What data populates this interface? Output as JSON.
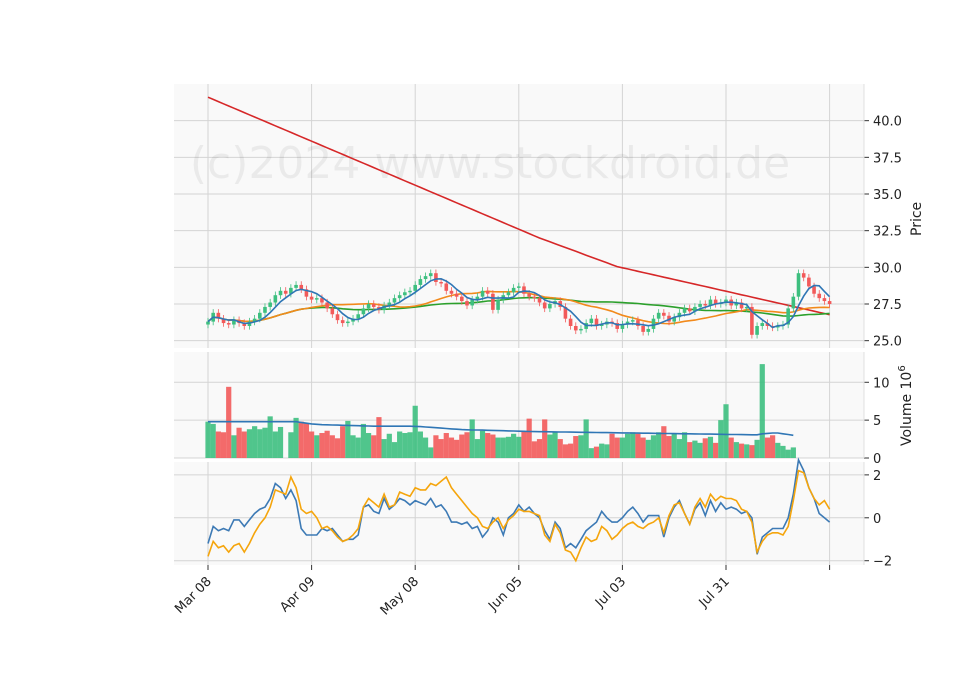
{
  "watermark": "(c)2024 www.stockdroid.de",
  "colors": {
    "up": "#3dbf7f",
    "down": "#f25a5a",
    "ma_short": "#2f76b5",
    "ma_mid": "#f28a1c",
    "ma_long": "#2ca02c",
    "ma_200": "#d62728",
    "osc_a": "#3d7ab5",
    "osc_b": "#f5a50c",
    "panel_bg": "#f9f9f9",
    "grid": "#d4d4d4"
  },
  "chart_data": [
    {
      "type": "candlestick",
      "ylabel": "Price",
      "ylim": [
        24.5,
        42.5
      ],
      "yticks": [
        25.0,
        27.5,
        30.0,
        32.5,
        35.0,
        37.5,
        40.0
      ],
      "x_tick_labels": [
        {
          "index": 0,
          "label": "Mar 08"
        },
        {
          "index": 20,
          "label": "Apr 09"
        },
        {
          "index": 40,
          "label": "May 08"
        },
        {
          "index": 60,
          "label": "Jun 05"
        },
        {
          "index": 80,
          "label": "Jul 03"
        },
        {
          "index": 100,
          "label": "Jul 31"
        },
        {
          "index": 120,
          "label": ""
        }
      ],
      "closes": [
        26.3,
        26.9,
        26.5,
        26.2,
        26.1,
        26.4,
        26.2,
        26.0,
        26.3,
        26.5,
        26.9,
        27.3,
        27.6,
        28.1,
        28.4,
        28.2,
        28.6,
        28.8,
        28.5,
        28.0,
        27.8,
        27.9,
        27.6,
        27.2,
        26.8,
        26.4,
        26.2,
        26.3,
        26.5,
        26.8,
        27.2,
        27.5,
        27.3,
        27.1,
        27.4,
        27.6,
        27.9,
        28.1,
        28.3,
        28.4,
        28.8,
        29.2,
        29.4,
        29.6,
        29.0,
        28.9,
        28.4,
        28.2,
        28.0,
        27.7,
        27.4,
        27.8,
        28.0,
        28.4,
        28.2,
        27.1,
        27.8,
        28.1,
        28.3,
        28.6,
        28.7,
        28.2,
        28.0,
        27.9,
        27.6,
        27.2,
        27.5,
        27.7,
        27.3,
        26.5,
        26.0,
        25.7,
        25.8,
        26.2,
        26.5,
        26.0,
        26.1,
        26.3,
        26.2,
        25.8,
        26.1,
        26.3,
        26.4,
        26.0,
        25.6,
        25.8,
        26.5,
        26.9,
        26.7,
        26.3,
        26.6,
        26.9,
        27.2,
        27.0,
        27.3,
        27.5,
        27.4,
        27.8,
        27.5,
        27.6,
        27.8,
        27.4,
        27.6,
        27.2,
        27.3,
        25.4,
        26.0,
        26.2,
        26.0,
        25.9,
        26.0,
        26.1,
        27.2,
        28.0,
        29.6,
        29.3,
        28.7,
        28.2,
        27.9,
        27.7,
        27.5
      ],
      "ma_200": [
        41.6,
        41.45,
        41.3,
        41.15,
        41.0,
        40.85,
        40.7,
        40.55,
        40.4,
        40.25,
        40.1,
        39.95,
        39.8,
        39.65,
        39.5,
        39.35,
        39.2,
        39.05,
        38.9,
        38.75,
        38.6,
        38.45,
        38.3,
        38.15,
        38.0,
        37.85,
        37.7,
        37.55,
        37.4,
        37.25,
        37.1,
        36.95,
        36.8,
        36.65,
        36.5,
        36.35,
        36.2,
        36.05,
        35.9,
        35.75,
        35.6,
        35.45,
        35.3,
        35.15,
        35.0,
        34.85,
        34.7,
        34.55,
        34.4,
        34.25,
        34.1,
        33.95,
        33.8,
        33.65,
        33.5,
        33.35,
        33.2,
        33.05,
        32.9,
        32.75,
        32.6,
        32.45,
        32.3,
        32.15,
        32.0,
        31.87,
        31.74,
        31.61,
        31.48,
        31.35,
        31.22,
        31.09,
        30.96,
        30.83,
        30.7,
        30.57,
        30.44,
        30.31,
        30.18,
        30.05,
        29.97,
        29.89,
        29.81,
        29.73,
        29.65,
        29.57,
        29.49,
        29.41,
        29.33,
        29.25,
        29.17,
        29.09,
        29.01,
        28.93,
        28.85,
        28.77,
        28.69,
        28.61,
        28.53,
        28.45,
        28.37,
        28.29,
        28.21,
        28.13,
        28.05,
        27.97,
        27.89,
        27.81,
        27.73,
        27.65,
        27.57,
        27.49,
        27.41,
        27.33,
        27.25,
        27.17,
        27.09,
        27.01,
        26.93,
        26.85,
        26.77
      ]
    },
    {
      "type": "bar",
      "ylabel": "Volume  10",
      "ylabel_exponent": "6",
      "ylim": [
        0,
        14
      ],
      "yticks": [
        0,
        5,
        10
      ],
      "values": [
        4.8,
        4.5,
        3.5,
        3.4,
        9.4,
        3.0,
        4.0,
        3.5,
        3.8,
        4.2,
        3.8,
        4.0,
        5.5,
        3.5,
        4.1,
        0.0,
        3.4,
        5.3,
        4.8,
        4.6,
        3.5,
        3.0,
        3.3,
        3.6,
        3.0,
        2.6,
        4.2,
        4.9,
        3.0,
        2.7,
        4.5,
        3.3,
        3.0,
        5.4,
        2.5,
        3.2,
        2.1,
        3.5,
        3.3,
        3.4,
        6.9,
        3.5,
        2.7,
        1.4,
        3.0,
        2.5,
        3.3,
        2.7,
        2.4,
        3.1,
        3.4,
        5.1,
        2.5,
        3.6,
        3.3,
        3.1,
        2.7,
        2.7,
        2.8,
        3.2,
        2.8,
        3.5,
        5.2,
        2.2,
        2.5,
        5.1,
        3.1,
        3.4,
        2.5,
        1.8,
        1.9,
        2.9,
        3.0,
        5.1,
        1.3,
        1.5,
        1.9,
        1.8,
        3.2,
        2.7,
        2.7,
        3.2,
        3.4,
        3.2,
        2.7,
        2.4,
        3.0,
        3.4,
        4.2,
        2.9,
        3.2,
        2.5,
        3.4,
        2.1,
        2.3,
        2.0,
        2.6,
        2.8,
        2.0,
        5.0,
        7.1,
        2.7,
        2.1,
        1.9,
        1.8,
        1.7,
        2.4,
        12.4,
        2.7,
        3.0,
        2.0,
        1.6,
        1.1,
        1.4
      ],
      "avg": [
        4.8,
        4.8,
        4.8,
        4.8,
        4.8,
        4.8,
        4.8,
        4.8,
        4.8,
        4.8,
        4.8,
        4.8,
        4.8,
        4.8,
        4.8,
        4.8,
        4.8,
        4.8,
        4.7,
        4.6,
        4.5,
        4.45,
        4.4,
        4.38,
        4.36,
        4.34,
        4.32,
        4.3,
        4.28,
        4.26,
        4.24,
        4.22,
        4.2,
        4.2,
        4.2,
        4.2,
        4.2,
        4.2,
        4.2,
        4.2,
        4.18,
        4.15,
        4.1,
        4.05,
        4.0,
        3.95,
        3.9,
        3.85,
        3.8,
        3.75,
        3.72,
        3.7,
        3.7,
        3.68,
        3.66,
        3.64,
        3.62,
        3.6,
        3.58,
        3.56,
        3.54,
        3.52,
        3.5,
        3.49,
        3.48,
        3.47,
        3.46,
        3.45,
        3.44,
        3.43,
        3.42,
        3.41,
        3.4,
        3.39,
        3.38,
        3.37,
        3.36,
        3.35,
        3.34,
        3.33,
        3.32,
        3.31,
        3.3,
        3.29,
        3.28,
        3.27,
        3.26,
        3.25,
        3.24,
        3.23,
        3.22,
        3.21,
        3.2,
        3.19,
        3.18,
        3.17,
        3.16,
        3.15,
        3.14,
        3.13,
        3.12,
        3.11,
        3.1,
        3.09,
        3.08,
        3.07,
        3.06,
        3.2,
        3.25,
        3.3,
        3.3,
        3.2,
        3.1,
        3.0
      ]
    },
    {
      "type": "line",
      "ylim": [
        -2.2,
        2.6
      ],
      "yticks": [
        -2,
        0,
        2
      ],
      "series": [
        {
          "values": [
            -1.2,
            -0.4,
            -0.6,
            -0.5,
            -0.6,
            -0.1,
            -0.1,
            -0.4,
            -0.1,
            0.2,
            0.4,
            0.5,
            0.9,
            1.6,
            1.4,
            0.9,
            1.3,
            0.8,
            -0.5,
            -0.8,
            -0.8,
            -0.8,
            -0.5,
            -0.6,
            -0.5,
            -0.8,
            -1.1,
            -1.0,
            -1.0,
            -0.8,
            0.5,
            0.6,
            0.3,
            0.2,
            0.9,
            0.4,
            0.6,
            0.9,
            0.8,
            0.6,
            0.8,
            0.7,
            0.6,
            0.9,
            0.5,
            0.6,
            0.3,
            -0.2,
            -0.2,
            -0.3,
            -0.2,
            -0.5,
            -0.4,
            -0.9,
            -0.6,
            0.0,
            -0.2,
            -0.8,
            0.0,
            0.2,
            0.6,
            0.3,
            0.5,
            0.2,
            0.0,
            -0.6,
            -1.0,
            -0.2,
            -0.5,
            -1.4,
            -1.2,
            -1.4,
            -1.0,
            -0.6,
            -0.4,
            -0.2,
            0.3,
            0.0,
            -0.2,
            -0.2,
            0.0,
            0.3,
            0.5,
            0.2,
            -0.2,
            0.1,
            0.1,
            0.1,
            -0.9,
            0.0,
            0.5,
            0.8,
            0.2,
            -0.3,
            0.4,
            0.7,
            0.1,
            0.8,
            0.3,
            0.7,
            0.4,
            0.5,
            0.4,
            0.2,
            0.3,
            0.0,
            -1.7,
            -0.9,
            -0.7,
            -0.5,
            -0.5,
            -0.5,
            0.0,
            1.1,
            2.7,
            2.2,
            1.4,
            0.9,
            0.2,
            0.0,
            -0.2
          ],
          "color_key": "osc_a"
        },
        {
          "values": [
            -1.8,
            -1.1,
            -1.4,
            -1.3,
            -1.6,
            -1.3,
            -1.2,
            -1.6,
            -1.2,
            -0.7,
            -0.3,
            0.0,
            0.5,
            1.3,
            1.2,
            1.1,
            1.9,
            1.4,
            0.4,
            0.2,
            0.3,
            0.0,
            -0.5,
            -0.4,
            -0.6,
            -0.9,
            -1.1,
            -1.0,
            -0.8,
            -0.5,
            0.5,
            0.9,
            0.7,
            0.5,
            1.1,
            0.5,
            0.6,
            1.2,
            1.1,
            1.0,
            1.4,
            1.3,
            1.3,
            1.6,
            1.5,
            1.7,
            1.9,
            1.4,
            1.1,
            0.8,
            0.5,
            0.2,
            0.0,
            -0.4,
            -0.5,
            -0.2,
            0.0,
            -0.5,
            -0.1,
            0.1,
            0.4,
            0.3,
            0.3,
            0.2,
            0.1,
            -0.8,
            -1.1,
            -0.3,
            -0.7,
            -1.5,
            -1.6,
            -2.0,
            -1.4,
            -0.9,
            -1.1,
            -1.0,
            -0.4,
            -0.6,
            -1.0,
            -0.8,
            -0.5,
            -0.3,
            -0.2,
            -0.4,
            -0.5,
            -0.3,
            -0.2,
            0.0,
            -0.7,
            0.1,
            0.6,
            0.7,
            0.2,
            -0.3,
            0.5,
            0.9,
            0.5,
            1.1,
            0.8,
            1.0,
            0.9,
            0.9,
            0.8,
            0.4,
            0.3,
            -0.2,
            -1.6,
            -1.1,
            -0.8,
            -0.7,
            -0.7,
            -0.8,
            -0.4,
            0.8,
            2.2,
            2.1,
            1.4,
            0.9,
            0.6,
            0.8,
            0.4
          ],
          "color_key": "osc_b"
        }
      ]
    }
  ]
}
